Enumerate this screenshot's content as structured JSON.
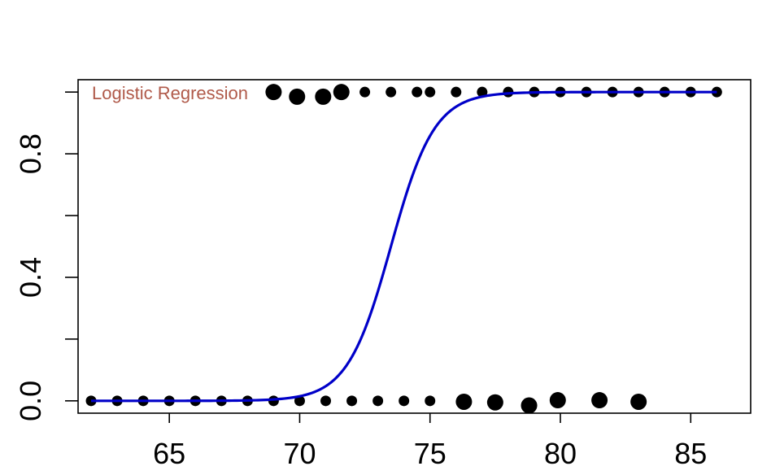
{
  "chart_data": {
    "type": "scatter",
    "title": "",
    "xlabel": "",
    "ylabel": "",
    "xlim": [
      61.5,
      87.3
    ],
    "ylim": [
      -0.04,
      1.04
    ],
    "x_ticks": [
      65,
      70,
      75,
      80,
      85
    ],
    "x_tick_labels": [
      "65",
      "70",
      "75",
      "80",
      "85"
    ],
    "y_ticks": [
      0.0,
      0.2,
      0.4,
      0.6,
      0.8,
      1.0
    ],
    "y_tick_labels": [
      "0.0",
      "",
      "0.4",
      "",
      "0.8",
      ""
    ],
    "grid": false,
    "annotation": {
      "text": "Logistic Regression",
      "color": "#b05a4a"
    },
    "points_color": "#000000",
    "points_small": [
      {
        "x": 62,
        "y": 0
      },
      {
        "x": 63,
        "y": 0
      },
      {
        "x": 64,
        "y": 0
      },
      {
        "x": 65,
        "y": 0
      },
      {
        "x": 66,
        "y": 0
      },
      {
        "x": 67,
        "y": 0
      },
      {
        "x": 68,
        "y": 0
      },
      {
        "x": 69,
        "y": 0
      },
      {
        "x": 70,
        "y": 0
      },
      {
        "x": 71,
        "y": 0
      },
      {
        "x": 72,
        "y": 0
      },
      {
        "x": 73,
        "y": 0
      },
      {
        "x": 74,
        "y": 0
      },
      {
        "x": 75,
        "y": 0
      },
      {
        "x": 72.5,
        "y": 1
      },
      {
        "x": 73.5,
        "y": 1
      },
      {
        "x": 74.5,
        "y": 1
      },
      {
        "x": 75,
        "y": 1
      },
      {
        "x": 76,
        "y": 1
      },
      {
        "x": 77,
        "y": 1
      },
      {
        "x": 78,
        "y": 1
      },
      {
        "x": 79,
        "y": 1
      },
      {
        "x": 80,
        "y": 1
      },
      {
        "x": 81,
        "y": 1
      },
      {
        "x": 82,
        "y": 1
      },
      {
        "x": 83,
        "y": 1
      },
      {
        "x": 84,
        "y": 1
      },
      {
        "x": 85,
        "y": 1
      },
      {
        "x": 86,
        "y": 1
      }
    ],
    "points_large": [
      {
        "x": 69,
        "y": 1.0
      },
      {
        "x": 69.9,
        "y": 0.985
      },
      {
        "x": 70.9,
        "y": 0.985
      },
      {
        "x": 71.6,
        "y": 1.0
      },
      {
        "x": 76.3,
        "y": -0.003
      },
      {
        "x": 77.5,
        "y": -0.005
      },
      {
        "x": 78.8,
        "y": -0.015
      },
      {
        "x": 79.9,
        "y": 0.002
      },
      {
        "x": 81.5,
        "y": 0.002
      },
      {
        "x": 83.0,
        "y": -0.003
      }
    ],
    "fitted_curve": {
      "type": "logistic",
      "color": "#0000c8",
      "midpoint": 73.5,
      "slope": 1.2,
      "x_range": [
        62,
        86
      ]
    }
  }
}
